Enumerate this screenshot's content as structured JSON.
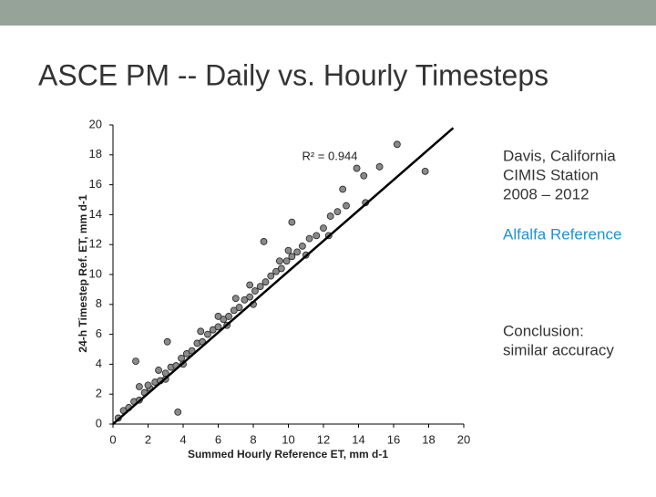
{
  "header": {
    "title": "ASCE PM -- Daily vs. Hourly Timesteps"
  },
  "side_text": {
    "station": [
      "Davis, California",
      "CIMIS Station",
      "2008 – 2012"
    ],
    "reference": "Alfalfa Reference",
    "conclusion": [
      "Conclusion:",
      "similar accuracy"
    ]
  },
  "chart_data": {
    "type": "scatter",
    "x_label": "Summed Hourly Reference ET, mm d-1",
    "y_label": "24-h Timestep Ref. ET, mm d-1",
    "annotation": "R² = 0.944",
    "xlim": [
      0,
      20
    ],
    "ylim": [
      0,
      20
    ],
    "xticks": [
      0,
      2,
      4,
      6,
      8,
      10,
      12,
      14,
      16,
      18,
      20
    ],
    "yticks": [
      0,
      2,
      4,
      6,
      8,
      10,
      12,
      14,
      16,
      18,
      20
    ],
    "color": "#8a8a8a",
    "x": [
      0.3,
      0.6,
      0.9,
      1.2,
      1.5,
      1.8,
      2.1,
      2.4,
      2.7,
      3.0,
      3.3,
      3.6,
      3.9,
      4.2,
      4.5,
      4.8,
      5.1,
      5.4,
      5.7,
      6.0,
      6.3,
      6.6,
      6.9,
      7.2,
      7.5,
      7.8,
      8.1,
      8.4,
      8.7,
      9.0,
      9.3,
      9.6,
      9.9,
      10.2,
      10.5,
      10.8,
      11.2,
      11.6,
      12.0,
      12.4,
      12.8,
      13.3,
      5.0,
      6.5,
      7.0,
      8.0,
      9.5,
      4.0,
      3.0,
      2.0,
      11.0,
      10.0,
      6.0,
      7.8,
      2.6,
      12.3,
      16.2,
      17.8,
      15.2,
      13.9,
      14.3,
      13.1,
      14.4,
      8.6,
      10.2,
      1.3,
      3.1,
      3.7,
      1.5
    ],
    "y": [
      0.4,
      0.9,
      1.1,
      1.5,
      1.6,
      2.1,
      2.4,
      2.8,
      2.9,
      3.4,
      3.8,
      3.9,
      4.4,
      4.7,
      4.9,
      5.4,
      5.5,
      6.0,
      6.3,
      6.5,
      7.0,
      7.2,
      7.6,
      7.8,
      8.3,
      8.5,
      8.9,
      9.2,
      9.5,
      9.9,
      10.2,
      10.4,
      10.9,
      11.2,
      11.5,
      11.9,
      12.4,
      12.6,
      13.1,
      13.9,
      14.2,
      14.6,
      6.2,
      6.6,
      8.4,
      8.0,
      10.9,
      4.0,
      3.0,
      2.6,
      11.3,
      11.6,
      7.2,
      9.3,
      3.6,
      12.6,
      18.7,
      16.9,
      17.2,
      17.1,
      16.6,
      15.7,
      14.8,
      12.2,
      13.5,
      4.2,
      5.5,
      0.8,
      2.5
    ],
    "trend_line": {
      "x": [
        0,
        19.4
      ],
      "y": [
        0,
        19.8
      ]
    }
  }
}
